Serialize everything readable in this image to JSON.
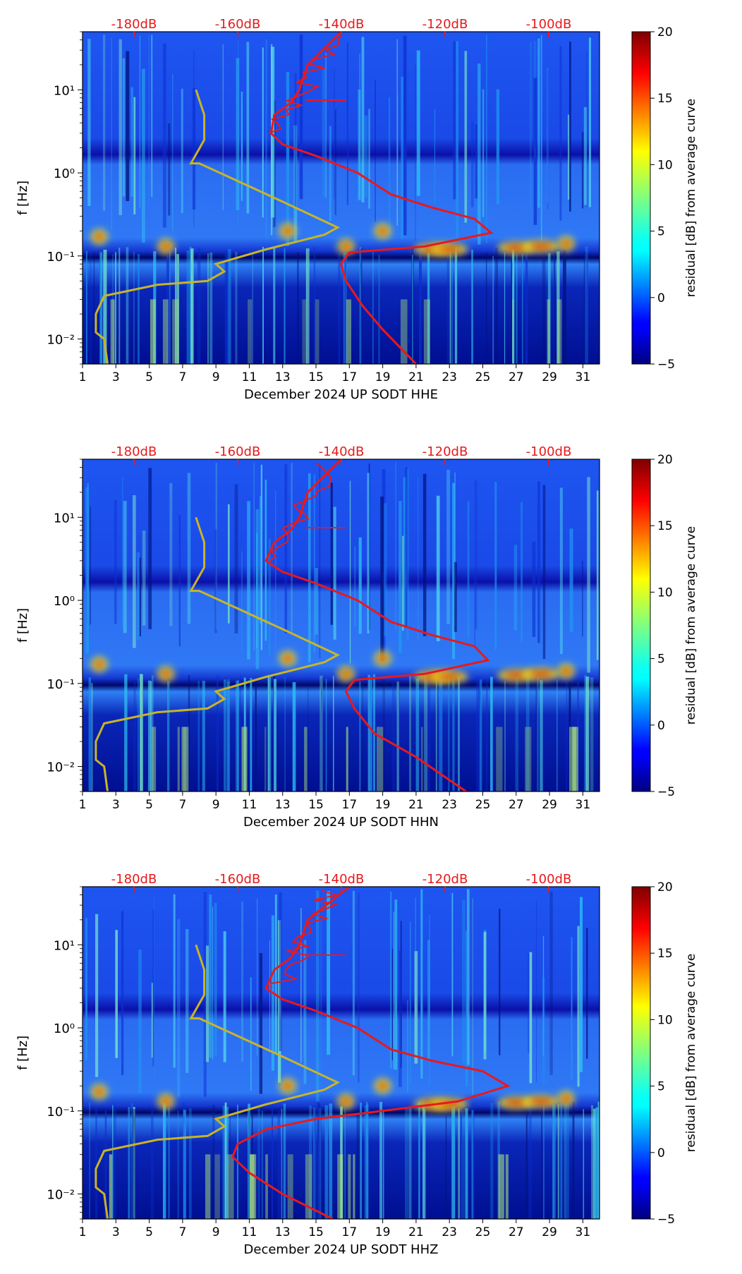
{
  "colors": {
    "noise_model_curve": "#c8b428",
    "average_curve": "#e8191c",
    "db_label": "#e8191c",
    "axis": "#000000"
  },
  "chart_data": [
    {
      "type": "heatmap",
      "channel": "HHE",
      "xlabel": "December 2024 UP SODT  HHE",
      "ylabel": "f [Hz]",
      "colorbar_label": "residual [dB] from average curve",
      "x_ticks": [
        "1",
        "3",
        "5",
        "7",
        "9",
        "11",
        "13",
        "15",
        "17",
        "19",
        "21",
        "23",
        "25",
        "27",
        "29",
        "31"
      ],
      "y_ticks": [
        "10⁻²",
        "10⁻¹",
        "10⁰",
        "10¹"
      ],
      "colorbar_ticks": [
        "20",
        "15",
        "10",
        "5",
        "0",
        "−5"
      ],
      "top_db_labels": [
        "-180dB",
        "-160dB",
        "-140dB",
        "-120dB",
        "-100dB"
      ],
      "xlim": [
        1,
        32
      ],
      "ylim_hz": [
        0.005,
        50
      ],
      "clim_db": [
        -5,
        20
      ],
      "noise_curve": [
        [
          2.5,
          0.005
        ],
        [
          2.3,
          0.01
        ],
        [
          1.8,
          0.012
        ],
        [
          1.8,
          0.02
        ],
        [
          2.3,
          0.033
        ],
        [
          5.5,
          0.045
        ],
        [
          8.5,
          0.05
        ],
        [
          9.5,
          0.065
        ],
        [
          9,
          0.08
        ],
        [
          12,
          0.12
        ],
        [
          15.5,
          0.18
        ],
        [
          16.3,
          0.22
        ],
        [
          13,
          0.45
        ],
        [
          8,
          1.3
        ],
        [
          7.5,
          1.3
        ],
        [
          8.3,
          2.5
        ],
        [
          8.3,
          5
        ],
        [
          7.8,
          10
        ]
      ],
      "average_curve": [
        [
          21,
          0.005
        ],
        [
          19,
          0.013
        ],
        [
          17.8,
          0.025
        ],
        [
          16.8,
          0.05
        ],
        [
          16.5,
          0.08
        ],
        [
          17,
          0.11
        ],
        [
          21.5,
          0.13
        ],
        [
          25.5,
          0.19
        ],
        [
          24.5,
          0.28
        ],
        [
          22,
          0.38
        ],
        [
          19.5,
          0.55
        ],
        [
          17.5,
          1
        ],
        [
          15,
          1.6
        ],
        [
          13,
          2.2
        ],
        [
          12.3,
          3
        ],
        [
          12.5,
          5
        ],
        [
          13.5,
          7
        ],
        [
          14,
          10
        ],
        [
          14.5,
          20
        ],
        [
          16.5,
          50
        ]
      ],
      "hot_spots": [
        [
          2,
          0.17
        ],
        [
          6,
          0.13
        ],
        [
          16.8,
          0.13
        ],
        [
          22,
          0.12
        ],
        [
          23,
          0.12
        ],
        [
          27,
          0.125
        ],
        [
          28.5,
          0.13
        ],
        [
          30,
          0.14
        ],
        [
          19,
          0.2
        ],
        [
          13.3,
          0.2
        ]
      ]
    },
    {
      "type": "heatmap",
      "channel": "HHN",
      "xlabel": "December 2024 UP SODT  HHN",
      "ylabel": "f [Hz]",
      "colorbar_label": "residual [dB] from average curve",
      "x_ticks": [
        "1",
        "3",
        "5",
        "7",
        "9",
        "11",
        "13",
        "15",
        "17",
        "19",
        "21",
        "23",
        "25",
        "27",
        "29",
        "31"
      ],
      "y_ticks": [
        "10⁻²",
        "10⁻¹",
        "10⁰",
        "10¹"
      ],
      "colorbar_ticks": [
        "20",
        "15",
        "10",
        "5",
        "0",
        "−5"
      ],
      "top_db_labels": [
        "-180dB",
        "-160dB",
        "-140dB",
        "-120dB",
        "-100dB"
      ],
      "xlim": [
        1,
        32
      ],
      "ylim_hz": [
        0.005,
        50
      ],
      "clim_db": [
        -5,
        20
      ],
      "noise_curve": [
        [
          2.5,
          0.005
        ],
        [
          2.3,
          0.01
        ],
        [
          1.8,
          0.012
        ],
        [
          1.8,
          0.02
        ],
        [
          2.3,
          0.033
        ],
        [
          5.5,
          0.045
        ],
        [
          8.5,
          0.05
        ],
        [
          9.5,
          0.065
        ],
        [
          9,
          0.08
        ],
        [
          12,
          0.12
        ],
        [
          15.5,
          0.18
        ],
        [
          16.3,
          0.22
        ],
        [
          13,
          0.45
        ],
        [
          8,
          1.3
        ],
        [
          7.5,
          1.3
        ],
        [
          8.3,
          2.5
        ],
        [
          8.3,
          5
        ],
        [
          7.8,
          10
        ]
      ],
      "average_curve": [
        [
          24,
          0.005
        ],
        [
          21,
          0.013
        ],
        [
          18.5,
          0.025
        ],
        [
          17.3,
          0.05
        ],
        [
          16.8,
          0.08
        ],
        [
          17.3,
          0.11
        ],
        [
          21.5,
          0.13
        ],
        [
          25.3,
          0.19
        ],
        [
          24.5,
          0.28
        ],
        [
          22,
          0.38
        ],
        [
          19.5,
          0.55
        ],
        [
          17.5,
          1
        ],
        [
          15,
          1.6
        ],
        [
          13,
          2.2
        ],
        [
          12,
          3
        ],
        [
          12.5,
          5
        ],
        [
          13.5,
          7
        ],
        [
          14,
          10
        ],
        [
          14.5,
          20
        ],
        [
          16.5,
          50
        ]
      ],
      "hot_spots": [
        [
          2,
          0.17
        ],
        [
          6,
          0.13
        ],
        [
          16.8,
          0.13
        ],
        [
          22,
          0.12
        ],
        [
          23,
          0.12
        ],
        [
          27,
          0.125
        ],
        [
          28.5,
          0.13
        ],
        [
          30,
          0.14
        ],
        [
          19,
          0.2
        ],
        [
          13.3,
          0.2
        ]
      ]
    },
    {
      "type": "heatmap",
      "channel": "HHZ",
      "xlabel": "December 2024 UP SODT  HHZ",
      "ylabel": "f [Hz]",
      "colorbar_label": "residual [dB] from average curve",
      "x_ticks": [
        "1",
        "3",
        "5",
        "7",
        "9",
        "11",
        "13",
        "15",
        "17",
        "19",
        "21",
        "23",
        "25",
        "27",
        "29",
        "31"
      ],
      "y_ticks": [
        "10⁻²",
        "10⁻¹",
        "10⁰",
        "10¹"
      ],
      "colorbar_ticks": [
        "20",
        "15",
        "10",
        "5",
        "0",
        "−5"
      ],
      "top_db_labels": [
        "-180dB",
        "-160dB",
        "-140dB",
        "-120dB",
        "-100dB"
      ],
      "xlim": [
        1,
        32
      ],
      "ylim_hz": [
        0.005,
        50
      ],
      "clim_db": [
        -5,
        20
      ],
      "noise_curve": [
        [
          2.5,
          0.005
        ],
        [
          2.3,
          0.01
        ],
        [
          1.8,
          0.012
        ],
        [
          1.8,
          0.02
        ],
        [
          2.3,
          0.033
        ],
        [
          5.5,
          0.045
        ],
        [
          8.5,
          0.05
        ],
        [
          9.5,
          0.065
        ],
        [
          9,
          0.08
        ],
        [
          12,
          0.12
        ],
        [
          15.5,
          0.18
        ],
        [
          16.3,
          0.22
        ],
        [
          13,
          0.45
        ],
        [
          8,
          1.3
        ],
        [
          7.5,
          1.3
        ],
        [
          8.3,
          2.5
        ],
        [
          8.3,
          5
        ],
        [
          7.8,
          10
        ]
      ],
      "average_curve": [
        [
          16,
          0.005
        ],
        [
          13,
          0.01
        ],
        [
          11,
          0.018
        ],
        [
          10,
          0.028
        ],
        [
          10.3,
          0.04
        ],
        [
          12,
          0.06
        ],
        [
          15,
          0.08
        ],
        [
          19,
          0.1
        ],
        [
          23.5,
          0.13
        ],
        [
          26.5,
          0.2
        ],
        [
          25,
          0.3
        ],
        [
          22,
          0.4
        ],
        [
          19.5,
          0.55
        ],
        [
          17.5,
          1
        ],
        [
          15,
          1.6
        ],
        [
          13,
          2.2
        ],
        [
          12,
          3
        ],
        [
          12.5,
          5
        ],
        [
          13.5,
          7
        ],
        [
          14,
          10
        ],
        [
          14.5,
          20
        ],
        [
          17,
          50
        ]
      ],
      "hot_spots": [
        [
          2,
          0.17
        ],
        [
          6,
          0.13
        ],
        [
          16.8,
          0.13
        ],
        [
          22,
          0.12
        ],
        [
          23,
          0.12
        ],
        [
          27,
          0.125
        ],
        [
          28.5,
          0.13
        ],
        [
          30,
          0.14
        ],
        [
          19,
          0.2
        ],
        [
          13.3,
          0.2
        ]
      ]
    }
  ]
}
